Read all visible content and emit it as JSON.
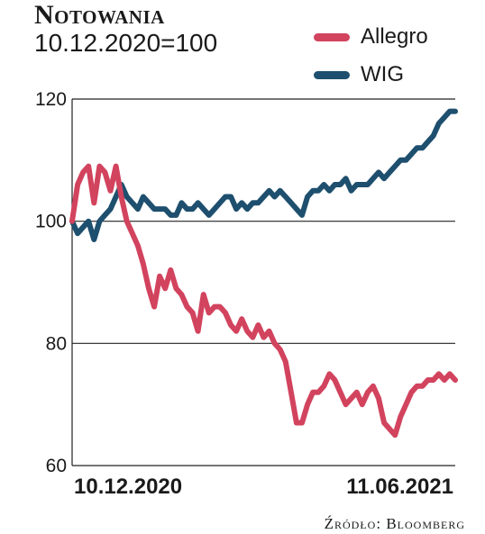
{
  "header": {
    "title": "Notowania",
    "subtitle": "10.12.2020=100"
  },
  "source": "Źródło: Bloomberg",
  "chart_data": {
    "type": "line",
    "title": "Notowania",
    "subtitle": "10.12.2020=100",
    "xlabel": "",
    "ylabel": "",
    "ylim": [
      60,
      120
    ],
    "yticks": [
      60,
      80,
      100,
      120
    ],
    "x_tick_labels": [
      "10.12.2020",
      "11.06.2021"
    ],
    "grid": "horizontal",
    "legend_position": "top-right",
    "series": [
      {
        "name": "Allegro",
        "color": "#d2435e",
        "values": [
          100,
          106,
          108,
          109,
          103,
          109,
          108,
          105,
          109,
          104,
          100,
          98,
          96,
          93,
          89,
          86,
          91,
          89,
          92,
          89,
          88,
          86,
          85,
          82,
          88,
          85,
          86,
          86,
          85,
          83,
          82,
          84,
          82,
          81,
          83,
          81,
          82,
          80,
          79,
          77,
          72,
          67,
          67,
          70,
          72,
          72,
          73,
          75,
          74,
          72,
          70,
          71,
          72,
          70,
          72,
          73,
          71,
          67,
          66,
          65,
          68,
          70,
          72,
          73,
          73,
          74,
          74,
          75,
          74,
          75,
          74
        ]
      },
      {
        "name": "WIG",
        "color": "#1e4f6e",
        "values": [
          100,
          98,
          99,
          100,
          97,
          100,
          101,
          102,
          104,
          106,
          104,
          103,
          102,
          104,
          103,
          102,
          102,
          102,
          101,
          101,
          103,
          102,
          102,
          103,
          102,
          101,
          102,
          103,
          104,
          104,
          102,
          103,
          102,
          103,
          103,
          104,
          105,
          104,
          105,
          104,
          103,
          102,
          101,
          104,
          105,
          105,
          106,
          105,
          106,
          106,
          107,
          105,
          106,
          106,
          106,
          107,
          108,
          107,
          108,
          109,
          110,
          110,
          111,
          112,
          112,
          113,
          114,
          116,
          117,
          118,
          118
        ]
      }
    ]
  }
}
